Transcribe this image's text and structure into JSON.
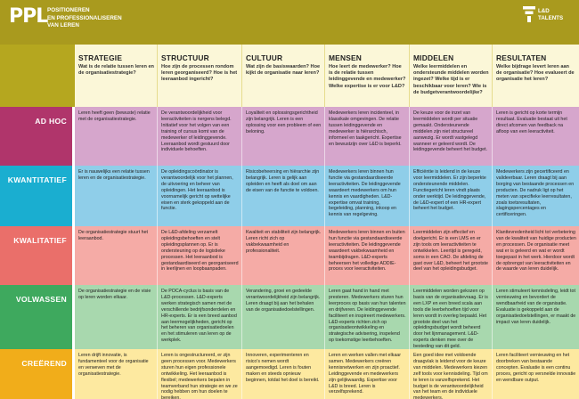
{
  "header": {
    "logo": "PPL",
    "tagline": [
      "POSITIONEREN",
      "EN PROFESSIONALISEREN",
      "VAN LEREN"
    ],
    "brand": [
      "L&D",
      "TALENTS"
    ]
  },
  "columns": [
    {
      "title": "STRATEGIE",
      "question": "Wat is de relatie tussen leren en de organisatiestrategie?"
    },
    {
      "title": "STRUCTUUR",
      "question": "Hoe zijn de processen rondom leren georganiseerd? Hoe is het leeraanbod ingericht?"
    },
    {
      "title": "CULTUUR",
      "question": "Wat zijn de basiswaarden? Hoe kijkt de organisatie naar leren?"
    },
    {
      "title": "MENSEN",
      "question": "Hoe leert de medewerker? Hoe is de relatie tussen leidinggevende en medewerker? Welke expertise is er voor L&D?"
    },
    {
      "title": "MIDDELEN",
      "question": "Welke leermiddelen en ondersteunde middelen worden ingezet? Welke tijd is er beschikbaar voor leren? Wie is de budgetverantwoordelijke?"
    },
    {
      "title": "RESULTATEN",
      "question": "Welke bijdrage levert leren aan de organisatie? Hoe evalueert de organisatie het leren?"
    }
  ],
  "rows": [
    {
      "label": "AD HOC",
      "cells": [
        "Leren heeft geen (bewuste) relatie met de organisatiestrategie.",
        "De verantwoordelijkheid voor leeractiviteiten is nergens belegd. Initiatief voor het volgen van een training of cursus komt van de medewerker of leidinggevende. Leeraanbod wordt gestuurd door individuele behoeften.",
        "Loyaliteit en oplossingsgerichtheid zijn belangrijk. Leren is een oplossing voor een probleem of een beloning.",
        "Medewerkers leren incidenteel, in klassikale omgevingen. De relatie tussen leidinggevende en medewerker is hiërarchisch, informeel en taakgericht. Expertise en bewustzijn over L&D is beperkt.",
        "De keuze voor de inzet van leermiddelen wordt per situatie gemaakt. Ondersteunende middelen zijn niet structureel aanwezig. Er wordt vastgelegd wanneer er geleerd wordt. De leidinggevende beheert het budget.",
        "Leren is gericht op korte termijn resultaat. Evaluatie bestaat uit het direct afcomen van feedback na afloop van een leeractiviteit."
      ]
    },
    {
      "label": "KWANTITATIEF",
      "cells": [
        "Er is nauwelijks een relatie tussen leren en de organisatiestrategie.",
        "De opleidingscoördinator is verantwoordelijk voor het plannen, de uitvoering en beheer van opleidingen. Het leeraanbod is voornamelijk gericht op wettelijke eisen en sterk gekoppeld aan de functie.",
        "Risicobeheersing en hiërarchie zijn belangrijk. Leren is gelijk aan opleiden en heeft als doel om aan de eisen van de functie te voldoen.",
        "Medewerkers leren binnen hun functie via gestandaardiseerde leeractiviteiten. De leidinggevende waardeert medewerkers om hun kennis en vaardigheden. L&D-expertise omvat training, begeleiding, planning, inkoop en kennis van regelgeving.",
        "Efficiëntie is leidend in de keuze voor leermiddelen. Er zijn beperkte ondersteunende middelen. Functiegericht leren vindt plaats onder werktijd. De leidinggevende, de L&D-expert of een HR-expert beheert het budget.",
        "Medewerkers zijn gecertificeerd en valideerbaar. Leren draagt bij aan borging van bestaande processen en producten. De nadruk ligt op het meten van specifieke leerresultaten, zoals toetsresultaten, slagingspercentages en certificeringen."
      ]
    },
    {
      "label": "KWALITATIEF",
      "cells": [
        "De organisatiestrategie stuurt het leeraanbod.",
        "De L&D-afdeling verzamelt opleidingsbehoeften en stelt opleidingsplannen op. Er is ondersteuning op de logistieke processen. Het leeraanbod is gestandaardiseerd en georganiseerd in leerlijnen en loopbaanpaden.",
        "Kwaliteit en stabiliteit zijn belangrijk. Leren richt zich op vakbekwaamheid en professionaliteit.",
        "Medewerkers leren binnen en buiten hun functie via gestandaardiseerde leeractiviteiten. De leidinggevende waardeert vakbekwaamheid en teambijdragen. L&D-experts beheersen het volledige ADDIE-proces voor leeractiviteiten.",
        "Leermiddelen zijn effectief en doelgericht. Er is een LMS en er zijn tools om leeractiviteiten te ontwikkelen. Leertijd is geregeld, soms in een CAO. De afdeling de gast over L&D, beheert het grootste deel van het opleidingsbudget.",
        "Klanttevredenheid licht tot verbetering van de kwaliteit van huidige producten en processen. De organisatie meet wat er is geleerd en wat er wordt toegepast in het werk. Hierdoor wordt de opbrengst van leeractiviteiten en de waarde van leren duidelijk."
      ]
    },
    {
      "label": "VOLWASSEN",
      "cells": [
        "De organisatiestrategie en de visie op leren worden elkaar.",
        "De POCA-cyclus is basis van de L&D-processen. L&D-experts werken strategisch samen met de verschillende bedrijfsonderdelen en HR-experts. Er is een breed aanbod aan leermogelijkheden, gericht op het beheren van organisatiedoelen en het stimuleren van leren op de werkplek.",
        "Verandering, groei en gedeelde verantwoordelijkheid zijn belangrijk. Leren draagt bij aan het behalen van de organisatiedoelstellingen.",
        "Leren gaat hand in hand met presteren. Medewerkers sturen hun leerproces op basis van hun talenten en drijfveren. De leidinggevende faciliteert en inspireert medewerkers. L&D-experts richten zich op organisatieontwikkeling en strategische advisering, inspelend op toekomstige leerbehoeften.",
        "Leermiddelen worden gekozen op basis van de organisatievraag. Er is een LXP en een breed scala aan tools die leerbehoeften tijd voor leren wordt in overleg bepaald. Het grootste deel van het opleidingsbudget wordt beheerd door het lijnmanagement. L&D-experts denken mee over de besteding van dit geld.",
        "Leren stimuleert kennisdeling, leidt tot vernieuwing en bevordert de wendbaarheid van de organisatie. Evaluatie is gekoppeld aan de organisatiedoelstellingen, er maakt de impact van leren duidelijk."
      ]
    },
    {
      "label": "CREËREND",
      "cells": [
        "Leren drijft innovatie, is fundamenteel voor de organisatie en verweven met de organisatiestrategie.",
        "Leren is ongestructureerd, er zijn geen processen voor. Medewerkers sturen hun eigen professionele ontwikkeling. Het leeraanbod is flexibel; medewerkers bepalen in teamverband hun strategie en we ze nodig hebben om hun doelen te bereiken.",
        "Innoveren, experimenteren en risico's nemen wordt aangemoedigd. Leren is fouten maken en steeds opnieuw beginnen, totdat het doel is bereikt.",
        "Leren en werken vallen met elkaar samen. Medewerkers creëren kennisnetwerken en zijn proactief. Leidinggevende en medewerkers zijn gelijkwaardig. Expertise voor L&D is breed. Leren is verzelfsprekend.",
        "Een goed idee met voldoende draagvlak is leidend voor de keuze van middelen. Medewerkers kiezen zelf tools voor kennisdeling. Tijd om te leren is vanzelfsprekend. Het budget is de verantwoordelijkheid van het team en de individuele medewerkers.",
        "Leren faciliteert vernieuwing en het doorbreken van bestaande concepten. Evaluatie is een continu proces, gericht op versnelde innovatie en wendbare output."
      ]
    }
  ],
  "colors": {
    "header": "#a99a1e",
    "column_header": "#fbf7d8",
    "rows": [
      {
        "label_bg": "#b0356b",
        "cell_bg": "#d6a6cc"
      },
      {
        "label_bg": "#1aaed0",
        "cell_bg": "#8fcee9"
      },
      {
        "label_bg": "#ea6f6a",
        "cell_bg": "#f5aba6"
      },
      {
        "label_bg": "#3ea95e",
        "cell_bg": "#a8d8ae"
      },
      {
        "label_bg": "#f1ad1a",
        "cell_bg": "#fde9a0"
      }
    ]
  },
  "icons": {
    "brand": "tree-icon"
  }
}
